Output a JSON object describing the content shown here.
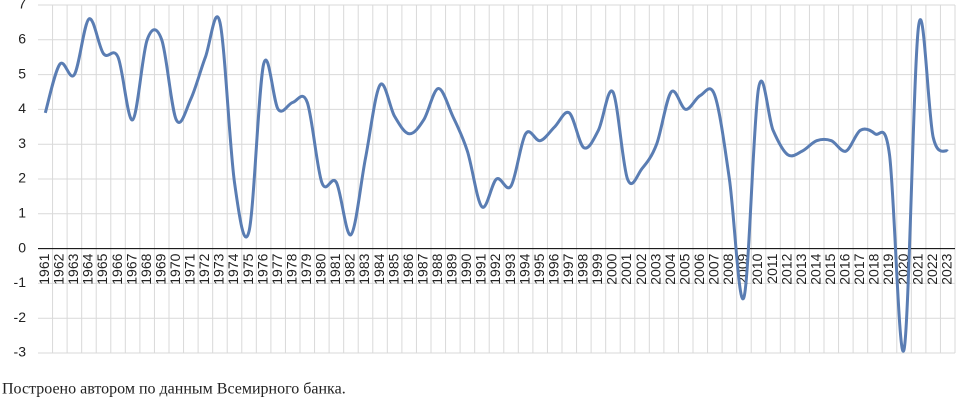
{
  "chart_data": {
    "type": "line",
    "caption": "Построено автором по данным Всемирного банка.",
    "categories": [
      "1961",
      "1962",
      "1963",
      "1964",
      "1965",
      "1966",
      "1967",
      "1968",
      "1969",
      "1970",
      "1971",
      "1972",
      "1973",
      "1974",
      "1975",
      "1976",
      "1977",
      "1978",
      "1979",
      "1980",
      "1981",
      "1982",
      "1983",
      "1984",
      "1985",
      "1986",
      "1987",
      "1988",
      "1989",
      "1990",
      "1991",
      "1992",
      "1993",
      "1994",
      "1995",
      "1996",
      "1997",
      "1998",
      "1999",
      "2000",
      "2001",
      "2002",
      "2003",
      "2004",
      "2005",
      "2006",
      "2007",
      "2008",
      "2009",
      "2010",
      "2011",
      "2012",
      "2013",
      "2014",
      "2015",
      "2016",
      "2017",
      "2018",
      "2019",
      "2020",
      "2021",
      "2022",
      "2023"
    ],
    "values": [
      3.9,
      5.3,
      5.0,
      6.6,
      5.6,
      5.5,
      3.7,
      6.0,
      6.0,
      3.7,
      4.3,
      5.5,
      6.5,
      1.9,
      0.5,
      5.3,
      4.0,
      4.2,
      4.2,
      1.9,
      1.9,
      0.4,
      2.6,
      4.7,
      3.8,
      3.3,
      3.7,
      4.6,
      3.8,
      2.8,
      1.2,
      2.0,
      1.8,
      3.3,
      3.1,
      3.5,
      3.9,
      2.9,
      3.4,
      4.5,
      2.0,
      2.3,
      3.0,
      4.5,
      4.0,
      4.4,
      4.4,
      2.0,
      -1.4,
      4.6,
      3.4,
      2.7,
      2.8,
      3.1,
      3.1,
      2.8,
      3.4,
      3.3,
      2.7,
      -2.9,
      6.4,
      3.2,
      2.8
    ],
    "color": "#5a7db3",
    "ylim": [
      -3,
      7
    ],
    "yticks": [
      -3,
      -2,
      -1,
      0,
      1,
      2,
      3,
      4,
      5,
      6,
      7
    ],
    "grid": true
  }
}
